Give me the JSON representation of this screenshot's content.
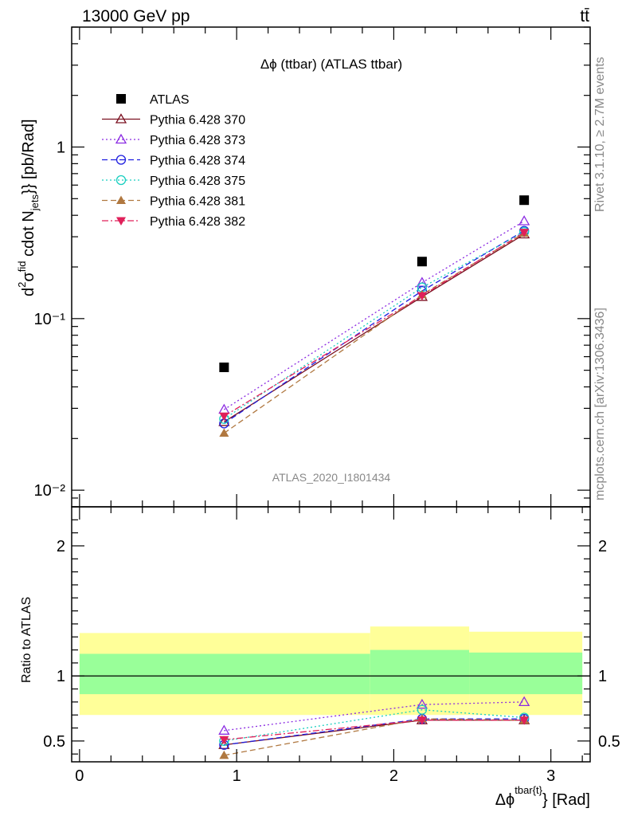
{
  "header": {
    "energy_label": "13000 GeV pp",
    "process_label": "tt̄"
  },
  "side_labels": {
    "rivet": "Rivet 3.1.10, ≥ 2.7M events",
    "source": "mcplots.cern.ch [arXiv:1306.3436]"
  },
  "chart_data": [
    {
      "type": "scatter",
      "title": "Δϕ (ttbar) (ATLAS ttbar)",
      "watermark": "ATLAS_2020_I1801434",
      "ylabel": "d²σ^fid / d² {Δϕ^tbar{t}} cdot N_jets}} [pb/Rad]",
      "yscale": "log",
      "xlim": [
        -0.05,
        3.25
      ],
      "ylim": [
        0.008,
        5
      ],
      "y_tick_labels": [
        "10⁻²",
        "10⁻¹",
        "1"
      ],
      "legend_position": "top-left",
      "x": [
        0.92,
        2.18,
        2.83
      ],
      "series": [
        {
          "name": "ATLAS",
          "color": "#000000",
          "marker": "square",
          "line": "none",
          "values": [
            0.052,
            0.215,
            0.49
          ]
        },
        {
          "name": "Pythia 6.428 370",
          "color": "#7b1020",
          "marker": "triangle-up-open",
          "line": "solid",
          "values": [
            0.025,
            0.134,
            0.31
          ]
        },
        {
          "name": "Pythia 6.428 373",
          "color": "#8b2be2",
          "marker": "triangle-up-open",
          "line": "dotted",
          "values": [
            0.0295,
            0.162,
            0.37
          ]
        },
        {
          "name": "Pythia 6.428 374",
          "color": "#1f1fe0",
          "marker": "circle-open",
          "line": "dashed",
          "values": [
            0.0245,
            0.145,
            0.325
          ]
        },
        {
          "name": "Pythia 6.428 375",
          "color": "#19cfc0",
          "marker": "circle-open",
          "line": "dotted",
          "values": [
            0.026,
            0.152,
            0.32
          ]
        },
        {
          "name": "Pythia 6.428 381",
          "color": "#b07840",
          "marker": "triangle-up-filled",
          "line": "dashed",
          "values": [
            0.0215,
            0.138,
            0.315
          ]
        },
        {
          "name": "Pythia 6.428 382",
          "color": "#e0205a",
          "marker": "triangle-down-filled",
          "line": "dashdot",
          "values": [
            0.027,
            0.136,
            0.318
          ]
        }
      ]
    },
    {
      "type": "scatter",
      "xlabel": "Δϕ^tbar{t}} [Rad]",
      "ylabel": "Ratio to ATLAS",
      "xlim": [
        -0.05,
        3.25
      ],
      "ylim": [
        0.34,
        2.3
      ],
      "x_ticks": [
        0,
        1,
        2,
        3
      ],
      "y_ticks": [
        0.5,
        1,
        2
      ],
      "reference_line": 1,
      "bands": [
        {
          "x0": 0.0,
          "x1": 1.85,
          "inner": [
            0.86,
            1.17
          ],
          "outer": [
            0.7,
            1.33
          ]
        },
        {
          "x0": 1.85,
          "x1": 2.48,
          "inner": [
            0.86,
            1.2
          ],
          "outer": [
            0.7,
            1.38
          ]
        },
        {
          "x0": 2.48,
          "x1": 3.2,
          "inner": [
            0.86,
            1.18
          ],
          "outer": [
            0.7,
            1.34
          ]
        }
      ],
      "x": [
        0.92,
        2.18,
        2.83
      ],
      "series": [
        {
          "name": "Pythia 6.428 370",
          "color": "#7b1020",
          "marker": "triangle-up-open",
          "line": "solid",
          "values": [
            0.47,
            0.66,
            0.66
          ]
        },
        {
          "name": "Pythia 6.428 373",
          "color": "#8b2be2",
          "marker": "triangle-up-open",
          "line": "dotted",
          "values": [
            0.58,
            0.78,
            0.8
          ]
        },
        {
          "name": "Pythia 6.428 374",
          "color": "#1f1fe0",
          "marker": "circle-open",
          "line": "dashed",
          "values": [
            0.47,
            0.67,
            0.67
          ]
        },
        {
          "name": "Pythia 6.428 375",
          "color": "#19cfc0",
          "marker": "circle-open",
          "line": "dotted",
          "values": [
            0.5,
            0.74,
            0.68
          ]
        },
        {
          "name": "Pythia 6.428 381",
          "color": "#b07840",
          "marker": "triangle-up-filled",
          "line": "dashed",
          "values": [
            0.39,
            0.67,
            0.66
          ]
        },
        {
          "name": "Pythia 6.428 382",
          "color": "#e0205a",
          "marker": "triangle-down-filled",
          "line": "dashdot",
          "values": [
            0.51,
            0.66,
            0.66
          ]
        }
      ]
    }
  ]
}
